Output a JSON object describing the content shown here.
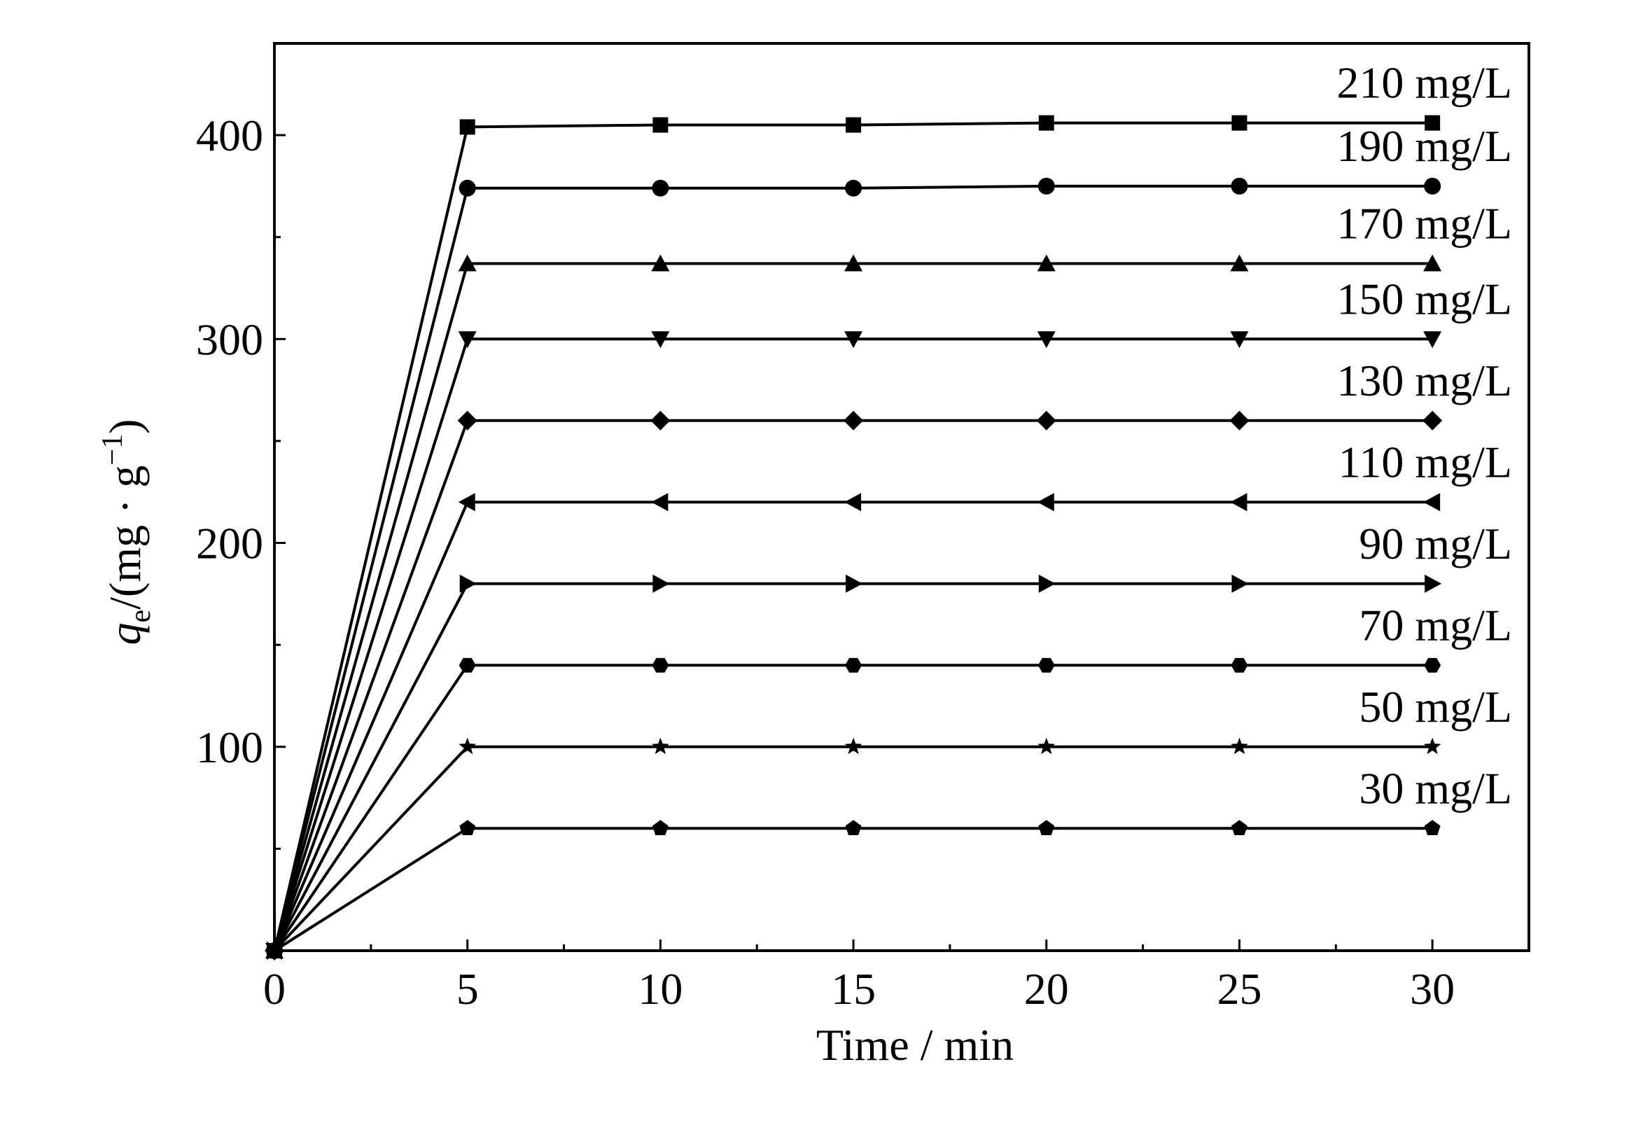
{
  "chart_data": {
    "type": "line",
    "xlabel": "Time / min",
    "ylabel": {
      "q": "q",
      "sub": "e",
      "unit": "/(mg · g",
      "exp": "−1",
      "close": ")"
    },
    "xlim": [
      0,
      32.5
    ],
    "ylim": [
      0,
      445
    ],
    "xticks": [
      0,
      5,
      10,
      15,
      20,
      25,
      30
    ],
    "yticks": [
      100,
      200,
      300,
      400
    ],
    "x": [
      0,
      5,
      10,
      15,
      20,
      25,
      30
    ],
    "grid": false,
    "series": [
      {
        "name": "210 mg/L",
        "marker": "square",
        "values": [
          0,
          404,
          405,
          405,
          406,
          406,
          406
        ]
      },
      {
        "name": "190 mg/L",
        "marker": "circle",
        "values": [
          0,
          374,
          374,
          374,
          375,
          375,
          375
        ]
      },
      {
        "name": "170 mg/L",
        "marker": "triangle-up",
        "values": [
          0,
          337,
          337,
          337,
          337,
          337,
          337
        ]
      },
      {
        "name": "150 mg/L",
        "marker": "triangle-down",
        "values": [
          0,
          300,
          300,
          300,
          300,
          300,
          300
        ]
      },
      {
        "name": "130 mg/L",
        "marker": "diamond",
        "values": [
          0,
          260,
          260,
          260,
          260,
          260,
          260
        ]
      },
      {
        "name": "110 mg/L",
        "marker": "triangle-left",
        "values": [
          0,
          220,
          220,
          220,
          220,
          220,
          220
        ]
      },
      {
        "name": "90 mg/L",
        "marker": "triangle-right",
        "values": [
          0,
          180,
          180,
          180,
          180,
          180,
          180
        ]
      },
      {
        "name": "70 mg/L",
        "marker": "hexagon",
        "values": [
          0,
          140,
          140,
          140,
          140,
          140,
          140
        ]
      },
      {
        "name": "50 mg/L",
        "marker": "star",
        "values": [
          0,
          100,
          100,
          100,
          100,
          100,
          100
        ]
      },
      {
        "name": "30 mg/L",
        "marker": "pentagon",
        "values": [
          0,
          60,
          60,
          60,
          60,
          60,
          60
        ]
      }
    ],
    "colors": {
      "line": "#000000",
      "background": "#ffffff"
    }
  }
}
